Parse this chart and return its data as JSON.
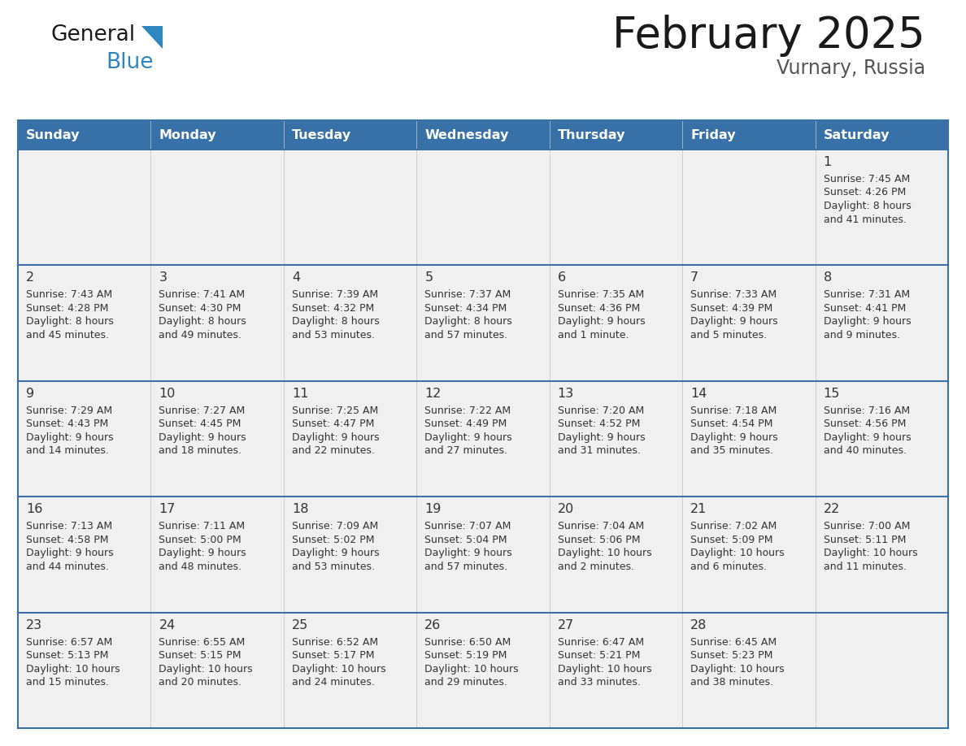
{
  "title": "February 2025",
  "subtitle": "Vurnary, Russia",
  "days_of_week": [
    "Sunday",
    "Monday",
    "Tuesday",
    "Wednesday",
    "Thursday",
    "Friday",
    "Saturday"
  ],
  "header_bg": "#3771a8",
  "header_text": "#FFFFFF",
  "cell_bg": "#F0F0F0",
  "row_separator_color": "#3771a8",
  "day_number_color": "#333333",
  "info_text_color": "#333333",
  "title_color": "#1A1A1A",
  "subtitle_color": "#555555",
  "logo_general_color": "#1A1A1A",
  "logo_blue_color": "#2E86C1",
  "logo_triangle_color": "#2E86C1",
  "calendar_data": [
    [
      null,
      null,
      null,
      null,
      null,
      null,
      {
        "day": 1,
        "sunrise": "7:45 AM",
        "sunset": "4:26 PM",
        "daylight": "8 hours and 41 minutes."
      }
    ],
    [
      {
        "day": 2,
        "sunrise": "7:43 AM",
        "sunset": "4:28 PM",
        "daylight": "8 hours and 45 minutes."
      },
      {
        "day": 3,
        "sunrise": "7:41 AM",
        "sunset": "4:30 PM",
        "daylight": "8 hours and 49 minutes."
      },
      {
        "day": 4,
        "sunrise": "7:39 AM",
        "sunset": "4:32 PM",
        "daylight": "8 hours and 53 minutes."
      },
      {
        "day": 5,
        "sunrise": "7:37 AM",
        "sunset": "4:34 PM",
        "daylight": "8 hours and 57 minutes."
      },
      {
        "day": 6,
        "sunrise": "7:35 AM",
        "sunset": "4:36 PM",
        "daylight": "9 hours and 1 minute."
      },
      {
        "day": 7,
        "sunrise": "7:33 AM",
        "sunset": "4:39 PM",
        "daylight": "9 hours and 5 minutes."
      },
      {
        "day": 8,
        "sunrise": "7:31 AM",
        "sunset": "4:41 PM",
        "daylight": "9 hours and 9 minutes."
      }
    ],
    [
      {
        "day": 9,
        "sunrise": "7:29 AM",
        "sunset": "4:43 PM",
        "daylight": "9 hours and 14 minutes."
      },
      {
        "day": 10,
        "sunrise": "7:27 AM",
        "sunset": "4:45 PM",
        "daylight": "9 hours and 18 minutes."
      },
      {
        "day": 11,
        "sunrise": "7:25 AM",
        "sunset": "4:47 PM",
        "daylight": "9 hours and 22 minutes."
      },
      {
        "day": 12,
        "sunrise": "7:22 AM",
        "sunset": "4:49 PM",
        "daylight": "9 hours and 27 minutes."
      },
      {
        "day": 13,
        "sunrise": "7:20 AM",
        "sunset": "4:52 PM",
        "daylight": "9 hours and 31 minutes."
      },
      {
        "day": 14,
        "sunrise": "7:18 AM",
        "sunset": "4:54 PM",
        "daylight": "9 hours and 35 minutes."
      },
      {
        "day": 15,
        "sunrise": "7:16 AM",
        "sunset": "4:56 PM",
        "daylight": "9 hours and 40 minutes."
      }
    ],
    [
      {
        "day": 16,
        "sunrise": "7:13 AM",
        "sunset": "4:58 PM",
        "daylight": "9 hours and 44 minutes."
      },
      {
        "day": 17,
        "sunrise": "7:11 AM",
        "sunset": "5:00 PM",
        "daylight": "9 hours and 48 minutes."
      },
      {
        "day": 18,
        "sunrise": "7:09 AM",
        "sunset": "5:02 PM",
        "daylight": "9 hours and 53 minutes."
      },
      {
        "day": 19,
        "sunrise": "7:07 AM",
        "sunset": "5:04 PM",
        "daylight": "9 hours and 57 minutes."
      },
      {
        "day": 20,
        "sunrise": "7:04 AM",
        "sunset": "5:06 PM",
        "daylight": "10 hours and 2 minutes."
      },
      {
        "day": 21,
        "sunrise": "7:02 AM",
        "sunset": "5:09 PM",
        "daylight": "10 hours and 6 minutes."
      },
      {
        "day": 22,
        "sunrise": "7:00 AM",
        "sunset": "5:11 PM",
        "daylight": "10 hours and 11 minutes."
      }
    ],
    [
      {
        "day": 23,
        "sunrise": "6:57 AM",
        "sunset": "5:13 PM",
        "daylight": "10 hours and 15 minutes."
      },
      {
        "day": 24,
        "sunrise": "6:55 AM",
        "sunset": "5:15 PM",
        "daylight": "10 hours and 20 minutes."
      },
      {
        "day": 25,
        "sunrise": "6:52 AM",
        "sunset": "5:17 PM",
        "daylight": "10 hours and 24 minutes."
      },
      {
        "day": 26,
        "sunrise": "6:50 AM",
        "sunset": "5:19 PM",
        "daylight": "10 hours and 29 minutes."
      },
      {
        "day": 27,
        "sunrise": "6:47 AM",
        "sunset": "5:21 PM",
        "daylight": "10 hours and 33 minutes."
      },
      {
        "day": 28,
        "sunrise": "6:45 AM",
        "sunset": "5:23 PM",
        "daylight": "10 hours and 38 minutes."
      },
      null
    ]
  ]
}
